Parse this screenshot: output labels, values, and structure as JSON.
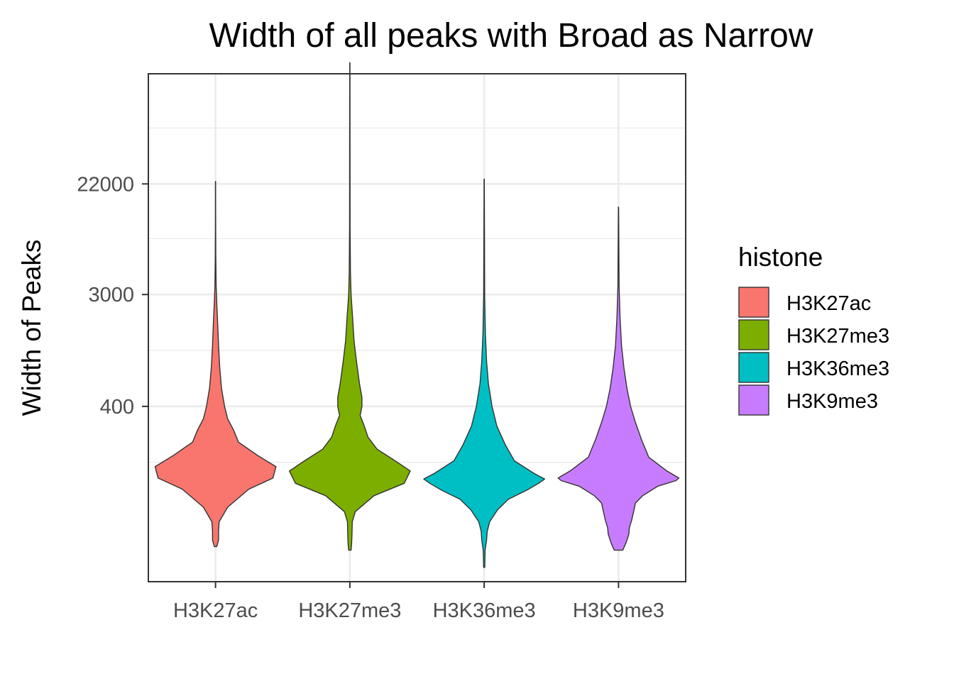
{
  "chart_data": {
    "type": "violin",
    "title": "Width of all peaks with Broad as Narrow",
    "xlabel": "",
    "ylabel": "Width of Peaks",
    "y_scale": "log",
    "y_ticks": [
      {
        "label": "400",
        "value": 400
      },
      {
        "label": "3000",
        "value": 3000
      },
      {
        "label": "22000",
        "value": 22000
      }
    ],
    "ylim": [
      17,
      160000
    ],
    "grid": true,
    "legend": {
      "title": "histone",
      "position": "right",
      "entries": [
        {
          "label": "H3K27ac",
          "color": "#F8766D"
        },
        {
          "label": "H3K27me3",
          "color": "#7CAE00"
        },
        {
          "label": "H3K36me3",
          "color": "#00BFC4"
        },
        {
          "label": "H3K9me3",
          "color": "#C77CFF"
        }
      ]
    },
    "categories": [
      "H3K27ac",
      "H3K27me3",
      "H3K36me3",
      "H3K9me3"
    ],
    "series": [
      {
        "name": "H3K27ac",
        "color": "#F8766D",
        "min": 32,
        "max": 23000,
        "profile": [
          [
            32,
            0.02
          ],
          [
            36,
            0.05
          ],
          [
            42,
            0.05
          ],
          [
            50,
            0.06
          ],
          [
            65,
            0.2
          ],
          [
            90,
            0.55
          ],
          [
            110,
            0.95
          ],
          [
            135,
            1.0
          ],
          [
            165,
            0.7
          ],
          [
            210,
            0.38
          ],
          [
            260,
            0.3
          ],
          [
            320,
            0.2
          ],
          [
            400,
            0.15
          ],
          [
            550,
            0.1
          ],
          [
            800,
            0.07
          ],
          [
            1200,
            0.05
          ],
          [
            1800,
            0.035
          ],
          [
            2500,
            0.022
          ],
          [
            3500,
            0.01
          ],
          [
            6000,
            0.004
          ],
          [
            12000,
            0.002
          ],
          [
            23000,
            0.001
          ]
        ]
      },
      {
        "name": "H3K27me3",
        "color": "#7CAE00",
        "min": 30,
        "max": 195000,
        "profile": [
          [
            30,
            0.02
          ],
          [
            34,
            0.03
          ],
          [
            40,
            0.035
          ],
          [
            50,
            0.04
          ],
          [
            60,
            0.09
          ],
          [
            80,
            0.4
          ],
          [
            100,
            0.9
          ],
          [
            125,
            1.0
          ],
          [
            150,
            0.75
          ],
          [
            185,
            0.45
          ],
          [
            230,
            0.3
          ],
          [
            280,
            0.24
          ],
          [
            340,
            0.17
          ],
          [
            400,
            0.2
          ],
          [
            470,
            0.2
          ],
          [
            600,
            0.16
          ],
          [
            900,
            0.11
          ],
          [
            1300,
            0.07
          ],
          [
            2000,
            0.045
          ],
          [
            3000,
            0.02
          ],
          [
            4500,
            0.01
          ],
          [
            10000,
            0.004
          ],
          [
            195000,
            0.002
          ]
        ]
      },
      {
        "name": "H3K36me3",
        "color": "#00BFC4",
        "min": 22,
        "max": 24000,
        "profile": [
          [
            22,
            0.01
          ],
          [
            30,
            0.015
          ],
          [
            36,
            0.04
          ],
          [
            42,
            0.05
          ],
          [
            50,
            0.09
          ],
          [
            62,
            0.22
          ],
          [
            75,
            0.4
          ],
          [
            88,
            0.7
          ],
          [
            100,
            0.9
          ],
          [
            108,
            1.0
          ],
          [
            120,
            0.82
          ],
          [
            150,
            0.5
          ],
          [
            200,
            0.35
          ],
          [
            280,
            0.21
          ],
          [
            400,
            0.13
          ],
          [
            600,
            0.07
          ],
          [
            900,
            0.04
          ],
          [
            1500,
            0.02
          ],
          [
            3000,
            0.008
          ],
          [
            24000,
            0.002
          ]
        ]
      },
      {
        "name": "H3K9me3",
        "color": "#C77CFF",
        "min": 30,
        "max": 14500,
        "profile": [
          [
            30,
            0.07
          ],
          [
            33,
            0.11
          ],
          [
            36,
            0.14
          ],
          [
            40,
            0.17
          ],
          [
            45,
            0.18
          ],
          [
            52,
            0.22
          ],
          [
            60,
            0.25
          ],
          [
            70,
            0.28
          ],
          [
            80,
            0.4
          ],
          [
            95,
            0.65
          ],
          [
            105,
            0.95
          ],
          [
            110,
            1.0
          ],
          [
            125,
            0.8
          ],
          [
            160,
            0.5
          ],
          [
            220,
            0.38
          ],
          [
            300,
            0.28
          ],
          [
            400,
            0.2
          ],
          [
            550,
            0.14
          ],
          [
            800,
            0.09
          ],
          [
            1200,
            0.05
          ],
          [
            2000,
            0.025
          ],
          [
            3500,
            0.01
          ],
          [
            14500,
            0.002
          ]
        ]
      }
    ]
  }
}
